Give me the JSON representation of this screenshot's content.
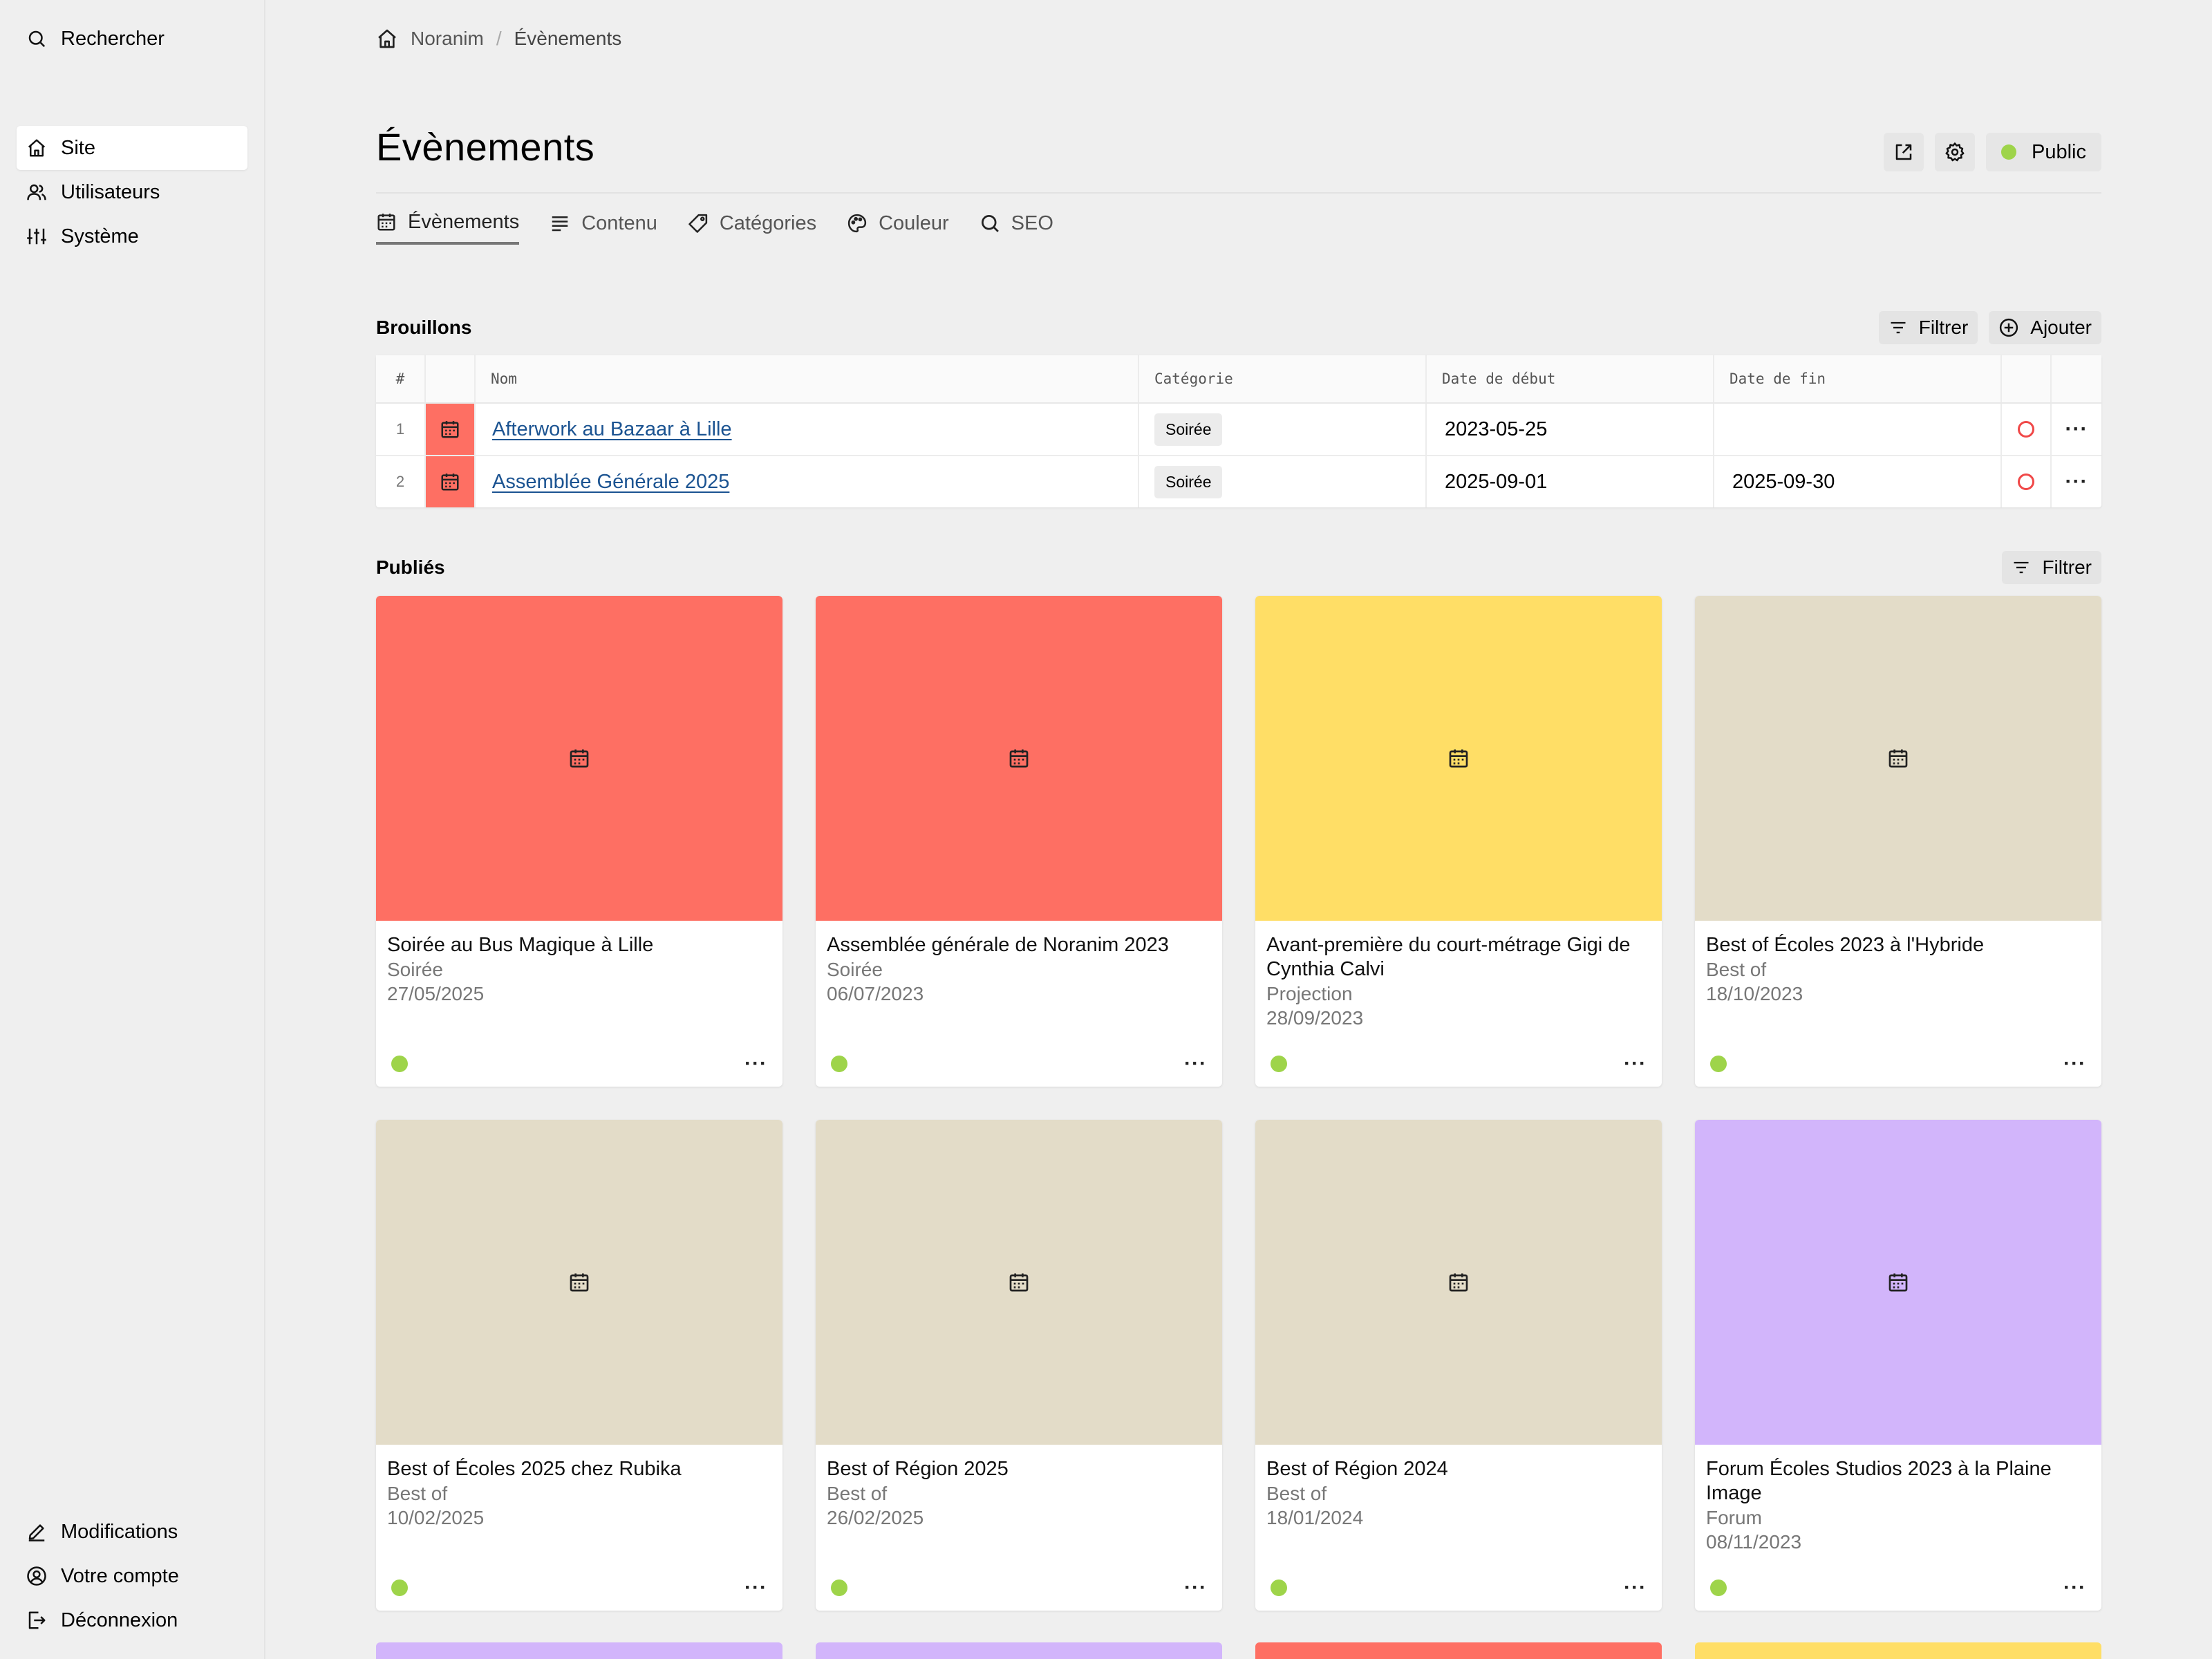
{
  "sidebar": {
    "search_label": "Rechercher",
    "nav": [
      {
        "label": "Site",
        "icon": "home-icon",
        "active": true
      },
      {
        "label": "Utilisateurs",
        "icon": "users-icon"
      },
      {
        "label": "Système",
        "icon": "sliders-icon"
      }
    ],
    "bottom": [
      {
        "label": "Modifications",
        "icon": "pencil-icon"
      },
      {
        "label": "Votre compte",
        "icon": "user-circle-icon"
      },
      {
        "label": "Déconnexion",
        "icon": "logout-icon"
      }
    ]
  },
  "breadcrumb": [
    "Noranim",
    "/",
    "Évènements"
  ],
  "page": {
    "title": "Évènements",
    "status_label": "Public",
    "status_color": "#9ed44a"
  },
  "tabs": [
    {
      "label": "Évènements",
      "icon": "calendar-icon",
      "active": true
    },
    {
      "label": "Contenu",
      "icon": "text-lines-icon"
    },
    {
      "label": "Catégories",
      "icon": "tag-icon"
    },
    {
      "label": "Couleur",
      "icon": "palette-icon"
    },
    {
      "label": "SEO",
      "icon": "search-icon"
    }
  ],
  "drafts": {
    "title": "Brouillons",
    "filter_label": "Filtrer",
    "add_label": "Ajouter",
    "columns": [
      "#",
      "",
      "Nom",
      "Catégorie",
      "Date de début",
      "Date de fin",
      "",
      ""
    ],
    "rows": [
      {
        "num": "1",
        "name": "Afterwork au Bazaar à Lille",
        "category": "Soirée",
        "start": "2023-05-25",
        "end": "",
        "color": "#fe6f63"
      },
      {
        "num": "2",
        "name": "Assemblée Générale 2025",
        "category": "Soirée",
        "start": "2025-09-01",
        "end": "2025-09-30",
        "color": "#fe6f63"
      }
    ]
  },
  "published": {
    "title": "Publiés",
    "filter_label": "Filtrer",
    "cards": [
      {
        "title": "Soirée au Bus Magique à Lille",
        "category": "Soirée",
        "date": "27/05/2025",
        "color": "#fe6f63"
      },
      {
        "title": "Assemblée générale de Noranim 2023",
        "category": "Soirée",
        "date": "06/07/2023",
        "color": "#fe6f63"
      },
      {
        "title": "Avant-première du court-métrage Gigi de Cynthia Calvi",
        "category": "Projection",
        "date": "28/09/2023",
        "color": "#ffde66"
      },
      {
        "title": "Best of Écoles 2023 à l'Hybride",
        "category": "Best of",
        "date": "18/10/2023",
        "color": "#e3dcc8"
      },
      {
        "title": "Best of Écoles 2025 chez Rubika",
        "category": "Best of",
        "date": "10/02/2025",
        "color": "#e3dcc8"
      },
      {
        "title": "Best of Région 2025",
        "category": "Best of",
        "date": "26/02/2025",
        "color": "#e3dcc8"
      },
      {
        "title": "Best of Région 2024",
        "category": "Best of",
        "date": "18/01/2024",
        "color": "#e3dcc8"
      },
      {
        "title": "Forum Écoles Studios 2023 à la Plaine Image",
        "category": "Forum",
        "date": "08/11/2023",
        "color": "#d2b5fb"
      }
    ],
    "peek_colors": [
      "#d2b5fb",
      "#d2b5fb",
      "#fe6f63",
      "#ffde66"
    ]
  }
}
